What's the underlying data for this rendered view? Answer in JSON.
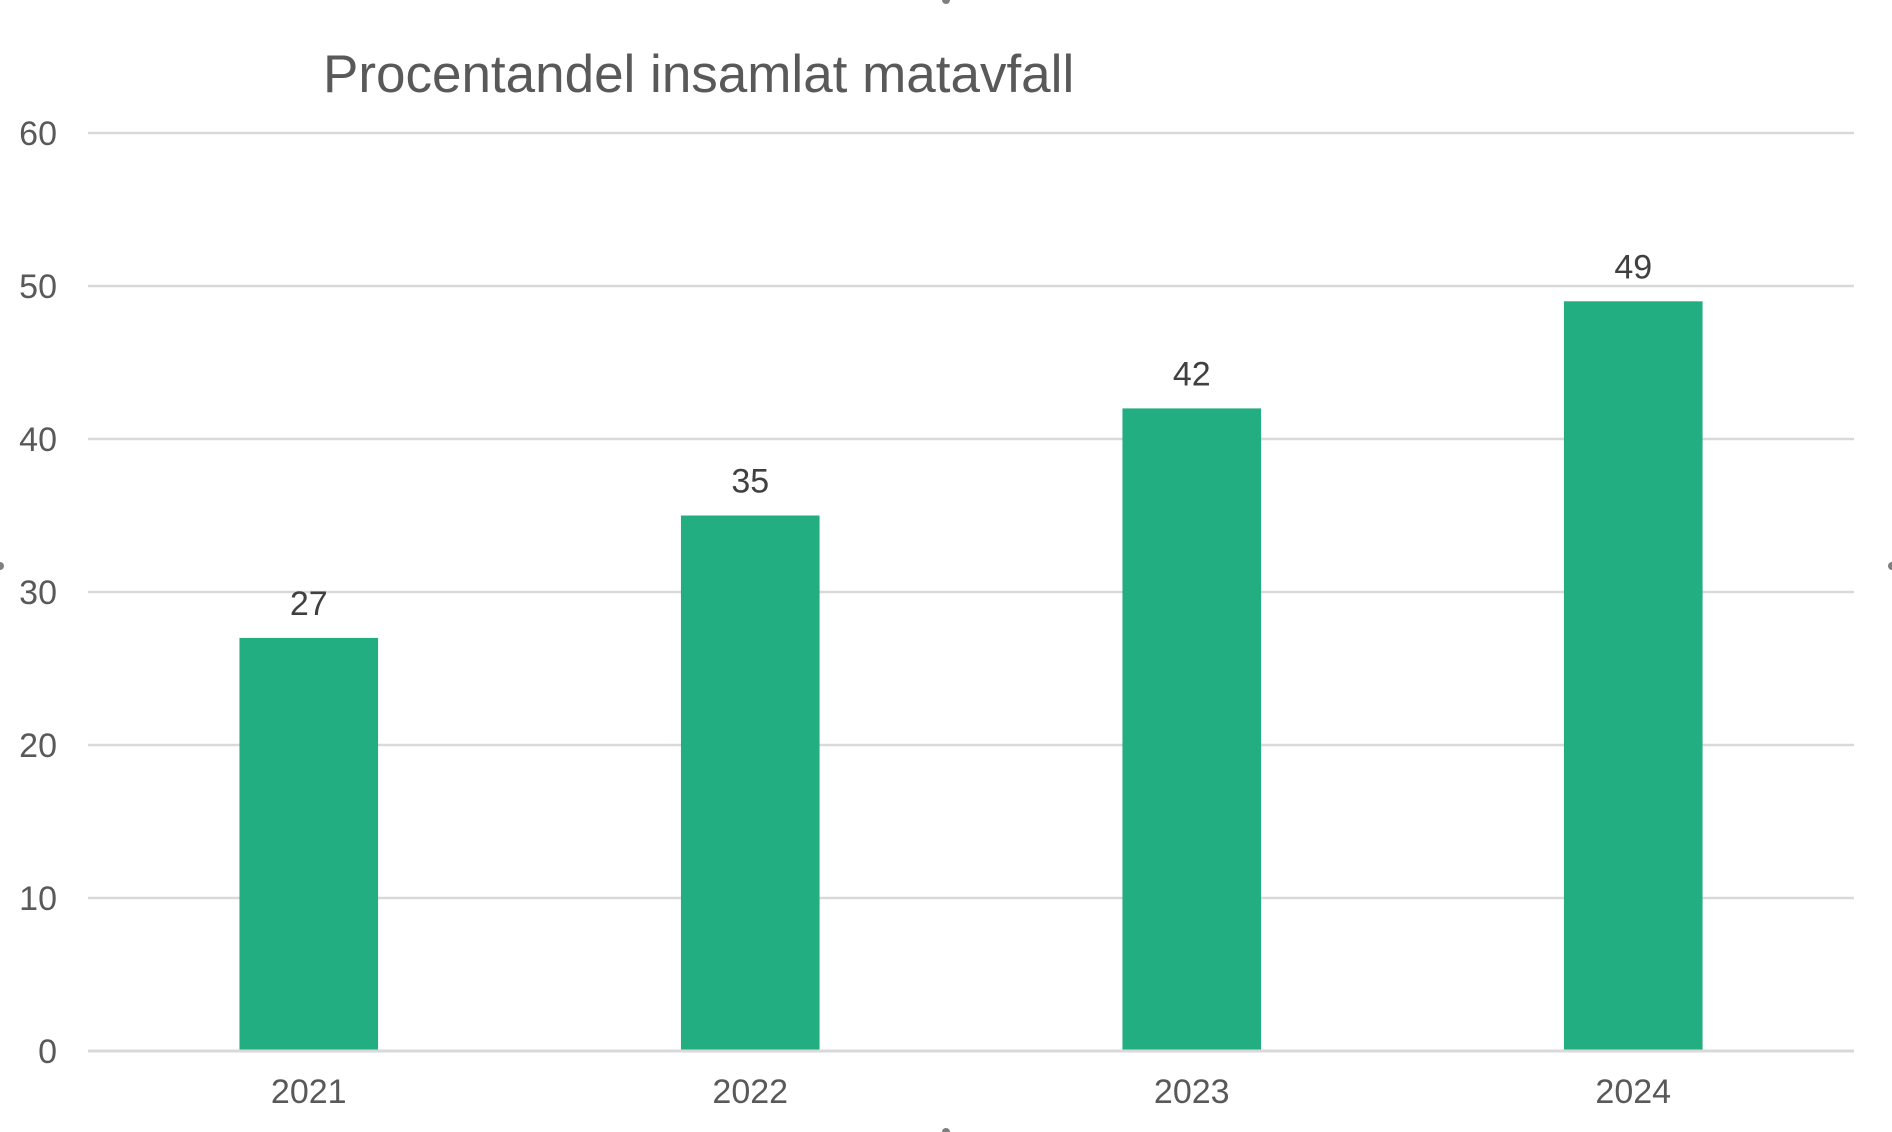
{
  "chart_data": {
    "type": "bar",
    "title": "Procentandel insamlat matavfall",
    "xlabel": "",
    "ylabel": "",
    "categories": [
      "2021",
      "2022",
      "2023",
      "2024"
    ],
    "values": [
      27,
      35,
      42,
      49
    ],
    "data_labels": [
      "27",
      "35",
      "42",
      "49"
    ],
    "y_ticks": [
      "0",
      "10",
      "20",
      "30",
      "40",
      "50",
      "60"
    ],
    "ylim": [
      0,
      60
    ],
    "grid": true,
    "legend": "none",
    "bar_color": "#23AE82",
    "gridline_color": "#D9D9D9",
    "text_color": "#595959",
    "label_color": "#404040"
  }
}
